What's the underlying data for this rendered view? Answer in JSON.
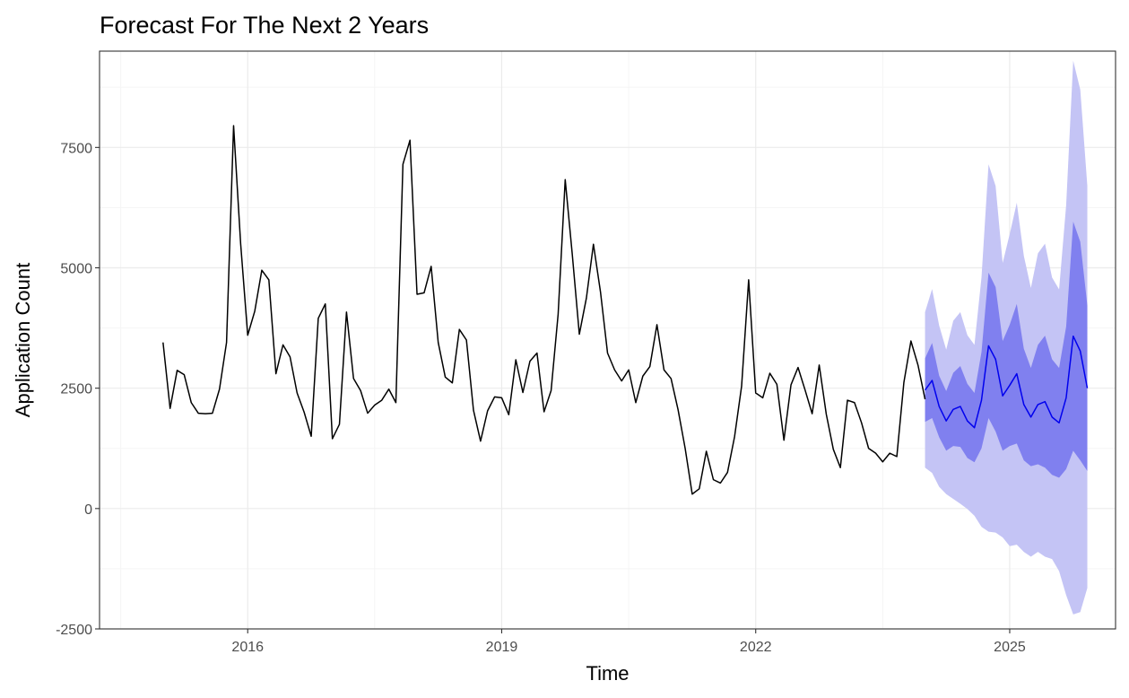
{
  "chart_data": {
    "type": "line",
    "title": "Forecast For The Next 2 Years",
    "xlabel": "Time",
    "ylabel": "Application Count",
    "xlim": [
      2014.25,
      2026.25
    ],
    "ylim": [
      -2500,
      9500
    ],
    "x_ticks": [
      2016,
      2019,
      2022,
      2025
    ],
    "x_tick_labels": [
      "2016",
      "2019",
      "2022",
      "2025"
    ],
    "y_ticks": [
      -2500,
      0,
      2500,
      5000,
      7500
    ],
    "y_tick_labels": [
      "-2500",
      "0",
      "2500",
      "5000",
      "7500"
    ],
    "grid": true,
    "colors": {
      "history": "#000000",
      "forecast": "#0000ee",
      "band80": "#8080ef",
      "band95": "#c4c4f5",
      "grid_major": "#ebebeb",
      "grid_minor": "#f5f5f5",
      "panel_border": "#333333",
      "tick_label": "#4d4d4d"
    },
    "history": {
      "start": [
        2015,
        1
      ],
      "values": [
        3450,
        2080,
        2870,
        2780,
        2200,
        1980,
        1970,
        1980,
        2480,
        3450,
        7950,
        5500,
        3600,
        4100,
        4950,
        4750,
        2800,
        3400,
        3150,
        2400,
        2000,
        1500,
        3950,
        4250,
        1450,
        1750,
        4080,
        2700,
        2450,
        1980,
        2150,
        2250,
        2480,
        2200,
        7150,
        7650,
        4450,
        4480,
        5030,
        3450,
        2730,
        2610,
        3720,
        3500,
        2040,
        1400,
        2030,
        2320,
        2300,
        1950,
        3090,
        2410,
        3060,
        3230,
        2010,
        2450,
        4040,
        6830,
        5280,
        3620,
        4370,
        5490,
        4500,
        3230,
        2880,
        2650,
        2880,
        2200,
        2750,
        2950,
        3820,
        2880,
        2700,
        2050,
        1250,
        300,
        410,
        1190,
        600,
        530,
        750,
        1490,
        2540,
        4750,
        2400,
        2300,
        2810,
        2580,
        1420,
        2570,
        2930,
        2460,
        1970,
        2980,
        1960,
        1230,
        850,
        2250,
        2200,
        1780,
        1250,
        1150,
        970,
        1150,
        1080,
        2620,
        3480,
        2980,
        2270
      ]
    },
    "forecast": {
      "start": [
        2024,
        1
      ],
      "mean": [
        2460,
        2660,
        2120,
        1820,
        2060,
        2120,
        1820,
        1680,
        2250,
        3380,
        3100,
        2340,
        2560,
        2800,
        2160,
        1900,
        2160,
        2220,
        1900,
        1780,
        2300,
        3580,
        3270,
        2500
      ],
      "lo80": [
        1800,
        1880,
        1480,
        1200,
        1300,
        1280,
        1050,
        960,
        1250,
        1880,
        1600,
        1200,
        1300,
        1350,
        1000,
        880,
        920,
        850,
        700,
        640,
        820,
        1200,
        1000,
        780
      ],
      "hi80": [
        3120,
        3440,
        2760,
        2440,
        2820,
        2960,
        2590,
        2400,
        3250,
        4900,
        4600,
        3480,
        3820,
        4250,
        3320,
        2920,
        3400,
        3590,
        3100,
        2920,
        3780,
        5960,
        5540,
        4220
      ],
      "lo95": [
        850,
        740,
        450,
        300,
        200,
        100,
        -10,
        -150,
        -380,
        -480,
        -500,
        -600,
        -780,
        -750,
        -900,
        -1000,
        -900,
        -1000,
        -1050,
        -1300,
        -1800,
        -2200,
        -2150,
        -1650
      ],
      "hi95": [
        4080,
        4560,
        3800,
        3300,
        3900,
        4080,
        3600,
        3400,
        4800,
        7150,
        6700,
        5100,
        5700,
        6350,
        5250,
        4580,
        5300,
        5500,
        4800,
        4550,
        6300,
        9300,
        8700,
        6700
      ]
    }
  }
}
